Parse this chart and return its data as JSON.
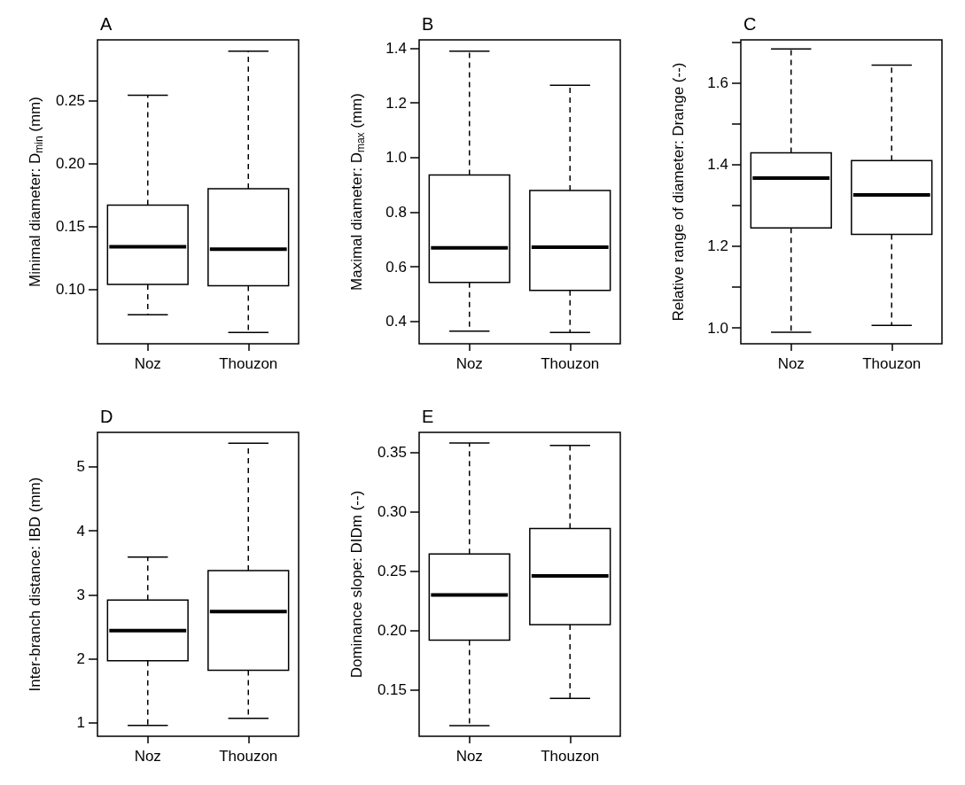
{
  "chart_data": [
    {
      "type": "box",
      "title": "A",
      "ylabel": "Minimal diameter: D$_{min}$ (mm)",
      "categories": [
        "Noz",
        "Thouzon"
      ],
      "boxes": [
        {
          "low": 0.08,
          "q1": 0.104,
          "median": 0.134,
          "q3": 0.167,
          "high": 0.254
        },
        {
          "low": 0.066,
          "q1": 0.103,
          "median": 0.132,
          "q3": 0.18,
          "high": 0.289
        }
      ],
      "ylim": [
        0.057,
        0.298
      ],
      "yticks": [
        {
          "value": 0.1,
          "label": "0.10"
        },
        0.15,
        {
          "value": 0.2,
          "label": "0.20"
        },
        0.25
      ],
      "grid": false
    },
    {
      "type": "box",
      "title": "B",
      "ylabel": "Maximal diameter: D$_{max}$ (mm)",
      "categories": [
        "Noz",
        "Thouzon"
      ],
      "boxes": [
        {
          "low": 0.365,
          "q1": 0.543,
          "median": 0.67,
          "q3": 0.936,
          "high": 1.389
        },
        {
          "low": 0.36,
          "q1": 0.514,
          "median": 0.672,
          "q3": 0.879,
          "high": 1.264
        }
      ],
      "ylim": [
        0.319,
        1.43
      ],
      "yticks": [
        0.4,
        0.6,
        0.8,
        {
          "value": 1,
          "label": "1.0"
        },
        1.2,
        1.4
      ],
      "grid": false
    },
    {
      "type": "box",
      "title": "C",
      "ylabel": "Relative range of diameter: Drange (--)",
      "categories": [
        "Noz",
        "Thouzon"
      ],
      "boxes": [
        {
          "low": 0.989,
          "q1": 1.245,
          "median": 1.367,
          "q3": 1.429,
          "high": 1.684
        },
        {
          "low": 1.006,
          "q1": 1.229,
          "median": 1.326,
          "q3": 1.41,
          "high": 1.644
        }
      ],
      "ylim": [
        0.961,
        1.706
      ],
      "yticks": [
        {
          "value": 1,
          "label": "1.0"
        },
        {
          "value": 1.1,
          "label": null
        },
        1.2,
        {
          "value": 1.3,
          "label": null
        },
        1.4,
        {
          "value": 1.5,
          "label": null
        },
        1.6,
        {
          "value": 1.7,
          "label": null
        }
      ],
      "grid": false
    },
    {
      "type": "box",
      "title": "D",
      "ylabel": "Inter-branch distance: IBD (mm)",
      "categories": [
        "Noz",
        "Thouzon"
      ],
      "boxes": [
        {
          "low": 0.96,
          "q1": 1.97,
          "median": 2.44,
          "q3": 2.92,
          "high": 3.59
        },
        {
          "low": 1.07,
          "q1": 1.82,
          "median": 2.74,
          "q3": 3.38,
          "high": 5.37
        }
      ],
      "ylim": [
        0.79,
        5.54
      ],
      "yticks": [
        1,
        2,
        3,
        4,
        5
      ],
      "grid": false
    },
    {
      "type": "box",
      "title": "E",
      "ylabel": "Dominance slope: DIDm (--)",
      "categories": [
        "Noz",
        "Thouzon"
      ],
      "boxes": [
        {
          "low": 0.12,
          "q1": 0.192,
          "median": 0.23,
          "q3": 0.2645,
          "high": 0.358
        },
        {
          "low": 0.143,
          "q1": 0.205,
          "median": 0.246,
          "q3": 0.286,
          "high": 0.356
        }
      ],
      "ylim": [
        0.111,
        0.367
      ],
      "yticks": [
        0.15,
        {
          "value": 0.2,
          "label": "0.20"
        },
        0.25,
        {
          "value": 0.3,
          "label": "0.30"
        },
        0.35
      ],
      "grid": false
    }
  ]
}
